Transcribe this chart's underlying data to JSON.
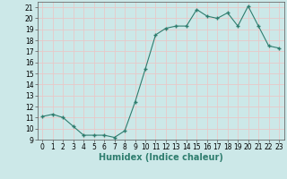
{
  "x": [
    0,
    1,
    2,
    3,
    4,
    5,
    6,
    7,
    8,
    9,
    10,
    11,
    12,
    13,
    14,
    15,
    16,
    17,
    18,
    19,
    20,
    21,
    22,
    23
  ],
  "y": [
    11.1,
    11.3,
    11.0,
    10.2,
    9.4,
    9.4,
    9.4,
    9.2,
    9.8,
    12.4,
    15.4,
    18.5,
    19.1,
    19.3,
    19.3,
    20.8,
    20.2,
    20.0,
    20.5,
    19.3,
    21.1,
    19.3,
    17.5,
    17.3
  ],
  "line_color": "#2e7d6e",
  "marker": "+",
  "marker_size": 3,
  "marker_linewidth": 1.0,
  "line_width": 0.8,
  "bg_color": "#cce8e8",
  "grid_color": "#e8c8c8",
  "xlabel": "Humidex (Indice chaleur)",
  "xlim": [
    -0.5,
    23.5
  ],
  "ylim": [
    9,
    21.5
  ],
  "yticks": [
    9,
    10,
    11,
    12,
    13,
    14,
    15,
    16,
    17,
    18,
    19,
    20,
    21
  ],
  "xticks": [
    0,
    1,
    2,
    3,
    4,
    5,
    6,
    7,
    8,
    9,
    10,
    11,
    12,
    13,
    14,
    15,
    16,
    17,
    18,
    19,
    20,
    21,
    22,
    23
  ],
  "tick_label_fontsize": 5.5,
  "xlabel_fontsize": 7
}
